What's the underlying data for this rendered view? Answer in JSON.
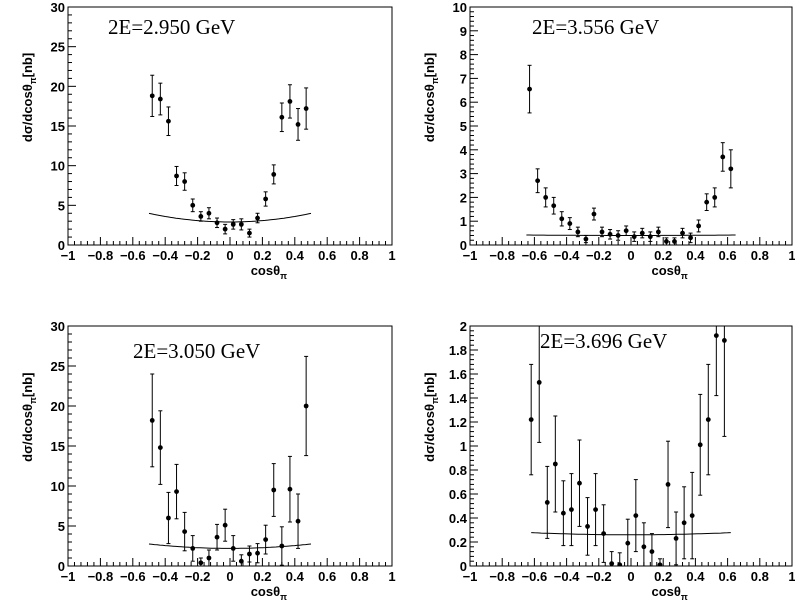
{
  "chart_data": [
    {
      "type": "scatter",
      "title": "2E=2.950 GeV",
      "xlabel": "cosθ",
      "xlabel_sub": "π",
      "ylabel": "dσ/dcosθ",
      "ylabel_sub": "π",
      "ylabel_unit": "[nb]",
      "xlim": [
        -1,
        1
      ],
      "ylim": [
        0,
        30
      ],
      "xticks": [
        -1,
        -0.8,
        -0.6,
        -0.4,
        -0.2,
        0,
        0.2,
        0.4,
        0.6,
        0.8,
        1
      ],
      "xtick_labels": [
        "−1",
        "−0.8",
        "−0.6",
        "−0.4",
        "−0.2",
        "0",
        "0.2",
        "0.4",
        "0.6",
        "0.8",
        "1"
      ],
      "yticks": [
        0,
        5,
        10,
        15,
        20,
        25,
        30
      ],
      "ytick_labels": [
        "0",
        "5",
        "10",
        "15",
        "20",
        "25",
        "30"
      ],
      "points": [
        {
          "x": -0.48,
          "y": 18.8,
          "err": 2.6
        },
        {
          "x": -0.43,
          "y": 18.4,
          "err": 2.0
        },
        {
          "x": -0.38,
          "y": 15.6,
          "err": 1.8
        },
        {
          "x": -0.33,
          "y": 8.7,
          "err": 1.2
        },
        {
          "x": -0.28,
          "y": 8.0,
          "err": 1.1
        },
        {
          "x": -0.23,
          "y": 5.0,
          "err": 0.8
        },
        {
          "x": -0.18,
          "y": 3.6,
          "err": 0.6
        },
        {
          "x": -0.13,
          "y": 4.0,
          "err": 0.7
        },
        {
          "x": -0.08,
          "y": 2.8,
          "err": 0.6
        },
        {
          "x": -0.03,
          "y": 2.0,
          "err": 0.6
        },
        {
          "x": 0.02,
          "y": 2.6,
          "err": 0.6
        },
        {
          "x": 0.07,
          "y": 2.6,
          "err": 0.7
        },
        {
          "x": 0.12,
          "y": 1.5,
          "err": 0.5
        },
        {
          "x": 0.17,
          "y": 3.4,
          "err": 0.6
        },
        {
          "x": 0.22,
          "y": 5.8,
          "err": 0.9
        },
        {
          "x": 0.27,
          "y": 8.9,
          "err": 1.2
        },
        {
          "x": 0.32,
          "y": 16.1,
          "err": 1.8
        },
        {
          "x": 0.37,
          "y": 18.1,
          "err": 2.1
        },
        {
          "x": 0.42,
          "y": 15.2,
          "err": 2.0
        },
        {
          "x": 0.47,
          "y": 17.2,
          "err": 2.6
        }
      ],
      "fit_curve": {
        "xmin": -0.5,
        "xmax": 0.5,
        "a": 2.9,
        "b": 1.5
      }
    },
    {
      "type": "scatter",
      "title": "2E=3.556 GeV",
      "xlabel": "cosθ",
      "xlabel_sub": "π",
      "ylabel": "dσ/dcosθ",
      "ylabel_sub": "π",
      "ylabel_unit": "[nb]",
      "xlim": [
        -1,
        1
      ],
      "ylim": [
        0,
        10
      ],
      "xticks": [
        -1,
        -0.8,
        -0.6,
        -0.4,
        -0.2,
        0,
        0.2,
        0.4,
        0.6,
        0.8,
        1
      ],
      "xtick_labels": [
        "−1",
        "−0.8",
        "−0.6",
        "−0.4",
        "−0.2",
        "0",
        "0.2",
        "0.4",
        "0.6",
        "0.8",
        "1"
      ],
      "yticks": [
        0,
        1,
        2,
        3,
        4,
        5,
        6,
        7,
        8,
        9,
        10
      ],
      "ytick_labels": [
        "0",
        "1",
        "2",
        "3",
        "4",
        "5",
        "6",
        "7",
        "8",
        "9",
        "10"
      ],
      "points": [
        {
          "x": -0.63,
          "y": 6.55,
          "err": 1.0
        },
        {
          "x": -0.58,
          "y": 2.7,
          "err": 0.5
        },
        {
          "x": -0.53,
          "y": 2.0,
          "err": 0.4
        },
        {
          "x": -0.48,
          "y": 1.65,
          "err": 0.35
        },
        {
          "x": -0.43,
          "y": 1.1,
          "err": 0.3
        },
        {
          "x": -0.38,
          "y": 0.9,
          "err": 0.25
        },
        {
          "x": -0.33,
          "y": 0.55,
          "err": 0.2
        },
        {
          "x": -0.28,
          "y": 0.25,
          "err": 0.15
        },
        {
          "x": -0.23,
          "y": 1.3,
          "err": 0.25
        },
        {
          "x": -0.18,
          "y": 0.55,
          "err": 0.2
        },
        {
          "x": -0.13,
          "y": 0.45,
          "err": 0.2
        },
        {
          "x": -0.08,
          "y": 0.4,
          "err": 0.2
        },
        {
          "x": -0.03,
          "y": 0.6,
          "err": 0.2
        },
        {
          "x": 0.02,
          "y": 0.35,
          "err": 0.2
        },
        {
          "x": 0.07,
          "y": 0.5,
          "err": 0.2
        },
        {
          "x": 0.12,
          "y": 0.35,
          "err": 0.2
        },
        {
          "x": 0.17,
          "y": 0.55,
          "err": 0.2
        },
        {
          "x": 0.22,
          "y": 0.15,
          "err": 0.15
        },
        {
          "x": 0.27,
          "y": 0.15,
          "err": 0.15
        },
        {
          "x": 0.32,
          "y": 0.5,
          "err": 0.2
        },
        {
          "x": 0.37,
          "y": 0.3,
          "err": 0.2
        },
        {
          "x": 0.42,
          "y": 0.8,
          "err": 0.25
        },
        {
          "x": 0.47,
          "y": 1.8,
          "err": 0.35
        },
        {
          "x": 0.52,
          "y": 2.0,
          "err": 0.4
        },
        {
          "x": 0.57,
          "y": 3.7,
          "err": 0.6
        },
        {
          "x": 0.62,
          "y": 3.2,
          "err": 0.8
        }
      ],
      "fit_curve": {
        "xmin": -0.65,
        "xmax": 0.65,
        "a": 0.4,
        "b": 0.12
      }
    },
    {
      "type": "scatter",
      "title": "2E=3.050 GeV",
      "xlabel": "cosθ",
      "xlabel_sub": "π",
      "ylabel": "dσ/dcosθ",
      "ylabel_sub": "π",
      "ylabel_unit": "[nb]",
      "xlim": [
        -1,
        1
      ],
      "ylim": [
        0,
        30
      ],
      "xticks": [
        -1,
        -0.8,
        -0.6,
        -0.4,
        -0.2,
        0,
        0.2,
        0.4,
        0.6,
        0.8,
        1
      ],
      "xtick_labels": [
        "−1",
        "−0.8",
        "−0.6",
        "−0.4",
        "−0.2",
        "0",
        "0.2",
        "0.4",
        "0.6",
        "0.8",
        "1"
      ],
      "yticks": [
        0,
        5,
        10,
        15,
        20,
        25,
        30
      ],
      "ytick_labels": [
        "0",
        "5",
        "10",
        "15",
        "20",
        "25",
        "30"
      ],
      "points": [
        {
          "x": -0.48,
          "y": 18.2,
          "err": 5.8
        },
        {
          "x": -0.43,
          "y": 14.8,
          "err": 4.6
        },
        {
          "x": -0.38,
          "y": 6.0,
          "err": 3.2
        },
        {
          "x": -0.33,
          "y": 9.3,
          "err": 3.4
        },
        {
          "x": -0.28,
          "y": 4.3,
          "err": 2.4
        },
        {
          "x": -0.23,
          "y": 2.2,
          "err": 1.6
        },
        {
          "x": -0.18,
          "y": 0.4,
          "err": 0.6
        },
        {
          "x": -0.13,
          "y": 1.0,
          "err": 1.0
        },
        {
          "x": -0.08,
          "y": 3.6,
          "err": 1.6
        },
        {
          "x": -0.03,
          "y": 5.1,
          "err": 2.0
        },
        {
          "x": 0.02,
          "y": 2.2,
          "err": 1.6
        },
        {
          "x": 0.07,
          "y": 0.6,
          "err": 0.8
        },
        {
          "x": 0.12,
          "y": 1.5,
          "err": 1.0
        },
        {
          "x": 0.17,
          "y": 1.6,
          "err": 1.2
        },
        {
          "x": 0.22,
          "y": 3.3,
          "err": 1.8
        },
        {
          "x": 0.27,
          "y": 9.5,
          "err": 3.3
        },
        {
          "x": 0.32,
          "y": 2.5,
          "err": 2.4
        },
        {
          "x": 0.37,
          "y": 9.6,
          "err": 4.1
        },
        {
          "x": 0.42,
          "y": 5.6,
          "err": 3.4
        },
        {
          "x": 0.47,
          "y": 20.0,
          "err": 6.2
        }
      ],
      "fit_curve": {
        "xmin": -0.5,
        "xmax": 0.5,
        "a": 2.2,
        "b": 1.0
      }
    },
    {
      "type": "scatter",
      "title": "2E=3.696 GeV",
      "xlabel": "cosθ",
      "xlabel_sub": "π",
      "ylabel": "dσ/dcosθ",
      "ylabel_sub": "π",
      "ylabel_unit": "[nb]",
      "xlim": [
        -1,
        1
      ],
      "ylim": [
        0,
        2
      ],
      "xticks": [
        -1,
        -0.8,
        -0.6,
        -0.4,
        -0.2,
        0,
        0.2,
        0.4,
        0.6,
        0.8,
        1
      ],
      "xtick_labels": [
        "−1",
        "−0.8",
        "−0.6",
        "−0.4",
        "−0.2",
        "0",
        "0.2",
        "0.4",
        "0.6",
        "0.8",
        "1"
      ],
      "yticks": [
        0,
        0.2,
        0.4,
        0.6,
        0.8,
        1,
        1.2,
        1.4,
        1.6,
        1.8,
        2
      ],
      "ytick_labels": [
        "0",
        "0.2",
        "0.4",
        "0.6",
        "0.8",
        "1",
        "1.2",
        "1.4",
        "1.6",
        "1.8",
        "2"
      ],
      "points": [
        {
          "x": -0.62,
          "y": 1.22,
          "err": 0.46
        },
        {
          "x": -0.57,
          "y": 1.53,
          "err": 0.5
        },
        {
          "x": -0.52,
          "y": 0.53,
          "err": 0.3
        },
        {
          "x": -0.47,
          "y": 0.85,
          "err": 0.4
        },
        {
          "x": -0.42,
          "y": 0.44,
          "err": 0.27
        },
        {
          "x": -0.37,
          "y": 0.47,
          "err": 0.3
        },
        {
          "x": -0.32,
          "y": 0.69,
          "err": 0.36
        },
        {
          "x": -0.27,
          "y": 0.33,
          "err": 0.24
        },
        {
          "x": -0.22,
          "y": 0.47,
          "err": 0.3
        },
        {
          "x": -0.17,
          "y": 0.27,
          "err": 0.24
        },
        {
          "x": -0.12,
          "y": 0.02,
          "err": 0.1
        },
        {
          "x": -0.07,
          "y": 0.01,
          "err": 0.1
        },
        {
          "x": -0.02,
          "y": 0.19,
          "err": 0.2
        },
        {
          "x": 0.03,
          "y": 0.42,
          "err": 0.3
        },
        {
          "x": 0.08,
          "y": 0.16,
          "err": 0.2
        },
        {
          "x": 0.13,
          "y": 0.12,
          "err": 0.15
        },
        {
          "x": 0.18,
          "y": 0.01,
          "err": 0.05
        },
        {
          "x": 0.23,
          "y": 0.68,
          "err": 0.36
        },
        {
          "x": 0.28,
          "y": 0.23,
          "err": 0.22
        },
        {
          "x": 0.33,
          "y": 0.36,
          "err": 0.3
        },
        {
          "x": 0.38,
          "y": 0.42,
          "err": 0.36
        },
        {
          "x": 0.43,
          "y": 1.01,
          "err": 0.42
        },
        {
          "x": 0.48,
          "y": 1.22,
          "err": 0.46
        },
        {
          "x": 0.53,
          "y": 1.92,
          "err": 0.5
        },
        {
          "x": 0.58,
          "y": 1.88,
          "err": 0.8
        }
      ],
      "fit_curve": {
        "xmin": -0.62,
        "xmax": 0.62,
        "a": 0.26,
        "b": 0.18
      }
    }
  ]
}
